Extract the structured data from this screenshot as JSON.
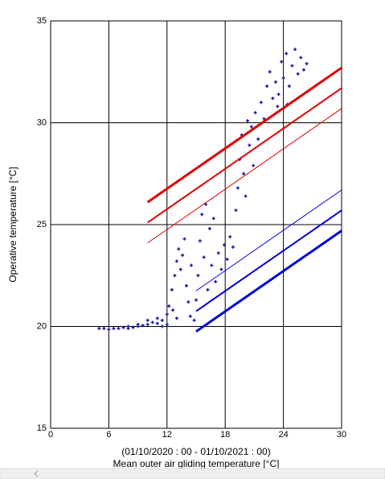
{
  "chart_data": {
    "type": "scatter",
    "x_label_line1": "(01/10/2020 : 00 - 01/10/2021 : 00)",
    "x_label": "Mean outer air gliding temperature [°C]",
    "y_label": "Operative temperature [°C]",
    "xlim": [
      0,
      30
    ],
    "xticks": [
      0,
      6,
      12,
      18,
      24,
      30
    ],
    "ylim": [
      15,
      35
    ],
    "yticks": [
      15,
      20,
      25,
      30,
      35
    ],
    "grid": true,
    "series": [
      {
        "mode": "points",
        "color": "#1c1ca0",
        "x": [
          5,
          5.5,
          6,
          6.5,
          7,
          7.5,
          8,
          8.5,
          9,
          9.5,
          10,
          10.5,
          11,
          11.5,
          12,
          8,
          9,
          10,
          11,
          11.5,
          12,
          12.2,
          12.5,
          12.8,
          13,
          13.2,
          13.4,
          13.6,
          13.8,
          14,
          14.2,
          14.4,
          14.5,
          14.8,
          13,
          12.6,
          15.2,
          15.4,
          15.6,
          15.8,
          16,
          16.2,
          16.4,
          16.6,
          16.8,
          17,
          15,
          17.3,
          17.6,
          17.9,
          18.2,
          18.5,
          18.8,
          19.1,
          19.3,
          19.5,
          19.7,
          19.9,
          20.1,
          20.3,
          20.5,
          20.7,
          20.9,
          21.1,
          21.4,
          21.7,
          22,
          22.3,
          22.6,
          22.9,
          23.2,
          23.5,
          23.8,
          24,
          24.3,
          24.6,
          24.9,
          25.2,
          25.5,
          25.8,
          26.1,
          26.4,
          23.4,
          24.4
        ],
        "values": [
          19.9,
          19.9,
          19.85,
          19.9,
          19.9,
          19.95,
          19.9,
          19.95,
          20,
          20.05,
          20.1,
          20.2,
          20.15,
          20.3,
          20.1,
          20,
          20.1,
          20.3,
          20.4,
          20,
          20.6,
          21,
          21.8,
          22.5,
          23.2,
          23.8,
          22.8,
          23.5,
          24.3,
          22,
          21.2,
          20.5,
          23,
          20.3,
          20.4,
          20.8,
          22.5,
          24.2,
          25.5,
          23.4,
          26,
          21.8,
          24.8,
          23,
          25.3,
          22.2,
          21.3,
          23.6,
          22.8,
          24,
          23.3,
          24.4,
          23.9,
          25.7,
          26.8,
          28.2,
          29.4,
          27.5,
          26.4,
          30.1,
          28.9,
          29.8,
          27.9,
          30.5,
          29.2,
          31,
          30.2,
          31.8,
          32.5,
          31.2,
          32,
          31.4,
          33,
          32.2,
          33.4,
          31.8,
          32.8,
          33.6,
          32.4,
          33.2,
          32.6,
          32.9,
          30.8,
          30.9
        ]
      },
      {
        "mode": "line",
        "color": "#e00000",
        "width": 3,
        "x": [
          10,
          30
        ],
        "values": [
          26.1,
          32.7
        ]
      },
      {
        "mode": "line",
        "color": "#e00000",
        "width": 2,
        "x": [
          10,
          30
        ],
        "values": [
          25.1,
          31.7
        ]
      },
      {
        "mode": "line",
        "color": "#e00000",
        "width": 1,
        "x": [
          10,
          30
        ],
        "values": [
          24.1,
          30.7
        ]
      },
      {
        "mode": "line",
        "color": "#0000dd",
        "width": 1,
        "x": [
          15,
          30
        ],
        "values": [
          21.75,
          26.7
        ]
      },
      {
        "mode": "line",
        "color": "#0000dd",
        "width": 2,
        "x": [
          15,
          30
        ],
        "values": [
          20.75,
          25.7
        ]
      },
      {
        "mode": "line",
        "color": "#0000dd",
        "width": 3,
        "x": [
          15,
          30
        ],
        "values": [
          19.75,
          24.7
        ]
      }
    ]
  }
}
